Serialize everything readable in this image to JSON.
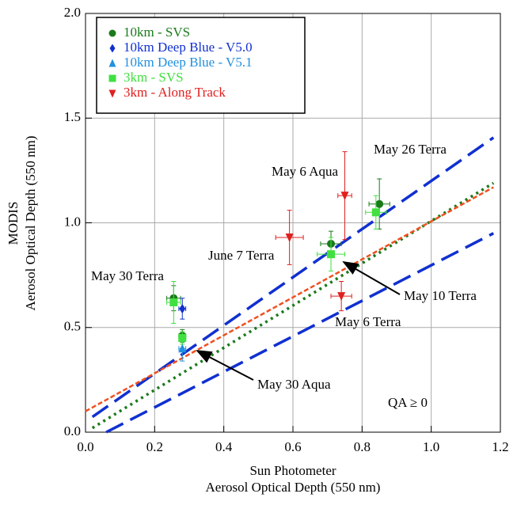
{
  "chart_data": {
    "type": "scatter",
    "xlabel": [
      "Sun Photometer",
      "Aerosol Optical Depth (550 nm)"
    ],
    "ylabel": [
      "MODIS",
      "Aerosol Optical Depth (550 nm)"
    ],
    "xlim": [
      0,
      1.2
    ],
    "ylim": [
      0,
      2
    ],
    "xticks": [
      {
        "value": 0,
        "label": "0.0"
      },
      0.2,
      0.4,
      0.6,
      0.8,
      {
        "value": 1,
        "label": "1.0"
      },
      1.2
    ],
    "yticks": [
      {
        "value": 0,
        "label": "0.0"
      },
      0.5,
      {
        "value": 1,
        "label": "1.0"
      },
      1.5,
      {
        "value": 2,
        "label": "2.0"
      }
    ],
    "grid": true,
    "legend": "upper left",
    "series": [
      {
        "name": "10km - SVS",
        "color": "#1a7a1a",
        "marker": "circle",
        "x": [
          0.255,
          0.28,
          0.71,
          0.85
        ],
        "values": [
          0.64,
          0.46,
          0.9,
          1.09
        ],
        "yerr": [
          0.06,
          0.03,
          0.06,
          0.12
        ],
        "xerr": [
          0.02,
          0.01,
          0.03,
          0.03
        ]
      },
      {
        "name": "10km Deep Blue - V5.0",
        "color": "#1030d0",
        "marker": "diamond",
        "x": [
          0.28
        ],
        "values": [
          0.59
        ],
        "yerr": [
          0.05
        ],
        "xerr": [
          0.01
        ]
      },
      {
        "name": "10km Deep Blue - V5.1",
        "color": "#2090e0",
        "marker": "triangle-up",
        "x": [
          0.28
        ],
        "values": [
          0.4
        ],
        "yerr": [
          0.06
        ],
        "xerr": [
          0.01
        ]
      },
      {
        "name": "3km - SVS",
        "color": "#40e040",
        "marker": "square",
        "x": [
          0.255,
          0.28,
          0.71,
          0.84
        ],
        "values": [
          0.62,
          0.45,
          0.85,
          1.05
        ],
        "yerr": [
          0.1,
          0.03,
          0.08,
          0.08
        ],
        "xerr": [
          0.02,
          0.01,
          0.04,
          0.03
        ]
      },
      {
        "name": "3km - Along Track",
        "color": "#e02020",
        "marker": "triangle-down",
        "x": [
          0.59,
          0.75,
          0.74
        ],
        "values": [
          0.93,
          1.13,
          0.65
        ],
        "yerr": [
          0.13,
          0.21,
          0.07
        ],
        "xerr": [
          0.04,
          0.02,
          0.03
        ]
      }
    ],
    "lines": [
      {
        "color": "#1030d0",
        "dash": "long",
        "x": [
          0.02,
          1.18
        ],
        "values": [
          0.073,
          1.407
        ]
      },
      {
        "color": "#1030d0",
        "dash": "long",
        "x": [
          0.06,
          1.18
        ],
        "values": [
          0,
          0.95
        ]
      },
      {
        "color": "#1a7a1a",
        "dash": "dot",
        "x": [
          0.02,
          1.18
        ],
        "values": [
          0.02,
          1.19
        ]
      },
      {
        "color": "#f05020",
        "dash": "short",
        "x": [
          0,
          1.18
        ],
        "values": [
          0.1,
          1.17
        ]
      }
    ],
    "annotations": [
      "May 26 Terra",
      "May 6 Aqua",
      "June 7 Terra",
      "May 30 Terra",
      "May 10 Terra",
      "May 6 Terra",
      "May 30 Aqua",
      "QA ≥ 0"
    ]
  }
}
